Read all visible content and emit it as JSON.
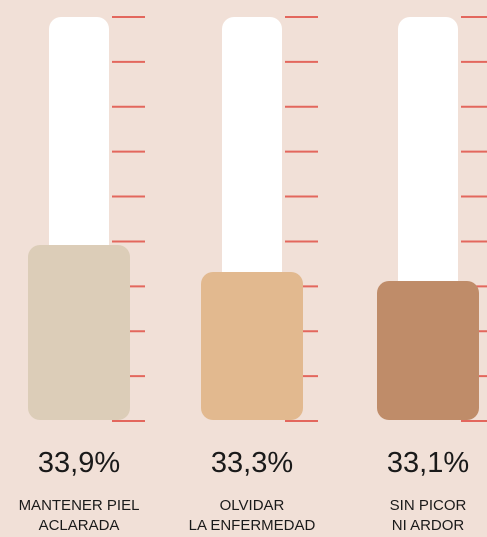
{
  "chart_data": {
    "type": "bar",
    "categories": [
      [
        "MANTENER PIEL",
        "ACLARADA"
      ],
      [
        "OLVIDAR",
        "LA ENFERMEDAD"
      ],
      [
        "SIN PICOR",
        "NI ARDOR"
      ]
    ],
    "values": [
      33.9,
      33.3,
      33.1
    ],
    "value_labels": [
      "33,9%",
      "33,3%",
      "33,1%"
    ],
    "ylim": [
      0,
      40
    ],
    "ticks_per_thermometer": 10,
    "colors": {
      "background": "#f1e0d7",
      "tube": "#ffffff",
      "ticks": "#e3675d",
      "bars": [
        "#dccdb8",
        "#e2b98f",
        "#bf8c69"
      ],
      "text": "#1a1a1a"
    }
  }
}
